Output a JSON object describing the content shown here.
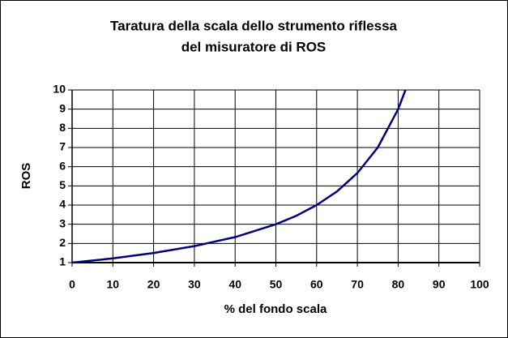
{
  "chart_data": {
    "type": "line",
    "title": [
      "Taratura della scala dello strumento riflessa",
      "del misuratore di ROS"
    ],
    "x_label": "% del fondo scala",
    "y_label": "ROS",
    "x": [
      0,
      10,
      20,
      30,
      40,
      50,
      55,
      60,
      65,
      70,
      75,
      80,
      81.8
    ],
    "series": [
      {
        "name": "ROS",
        "color": "#000080",
        "values": [
          1,
          1.22,
          1.5,
          1.86,
          2.33,
          3,
          3.44,
          4,
          4.71,
          5.67,
          7,
          9,
          10
        ]
      }
    ],
    "xlim": [
      0,
      100
    ],
    "xticks": [
      0,
      10,
      20,
      30,
      40,
      50,
      60,
      70,
      80,
      90,
      100
    ],
    "ylim": [
      1,
      10
    ],
    "yticks": [
      1,
      2,
      3,
      4,
      5,
      6,
      7,
      8,
      9,
      10
    ],
    "grid": true
  }
}
